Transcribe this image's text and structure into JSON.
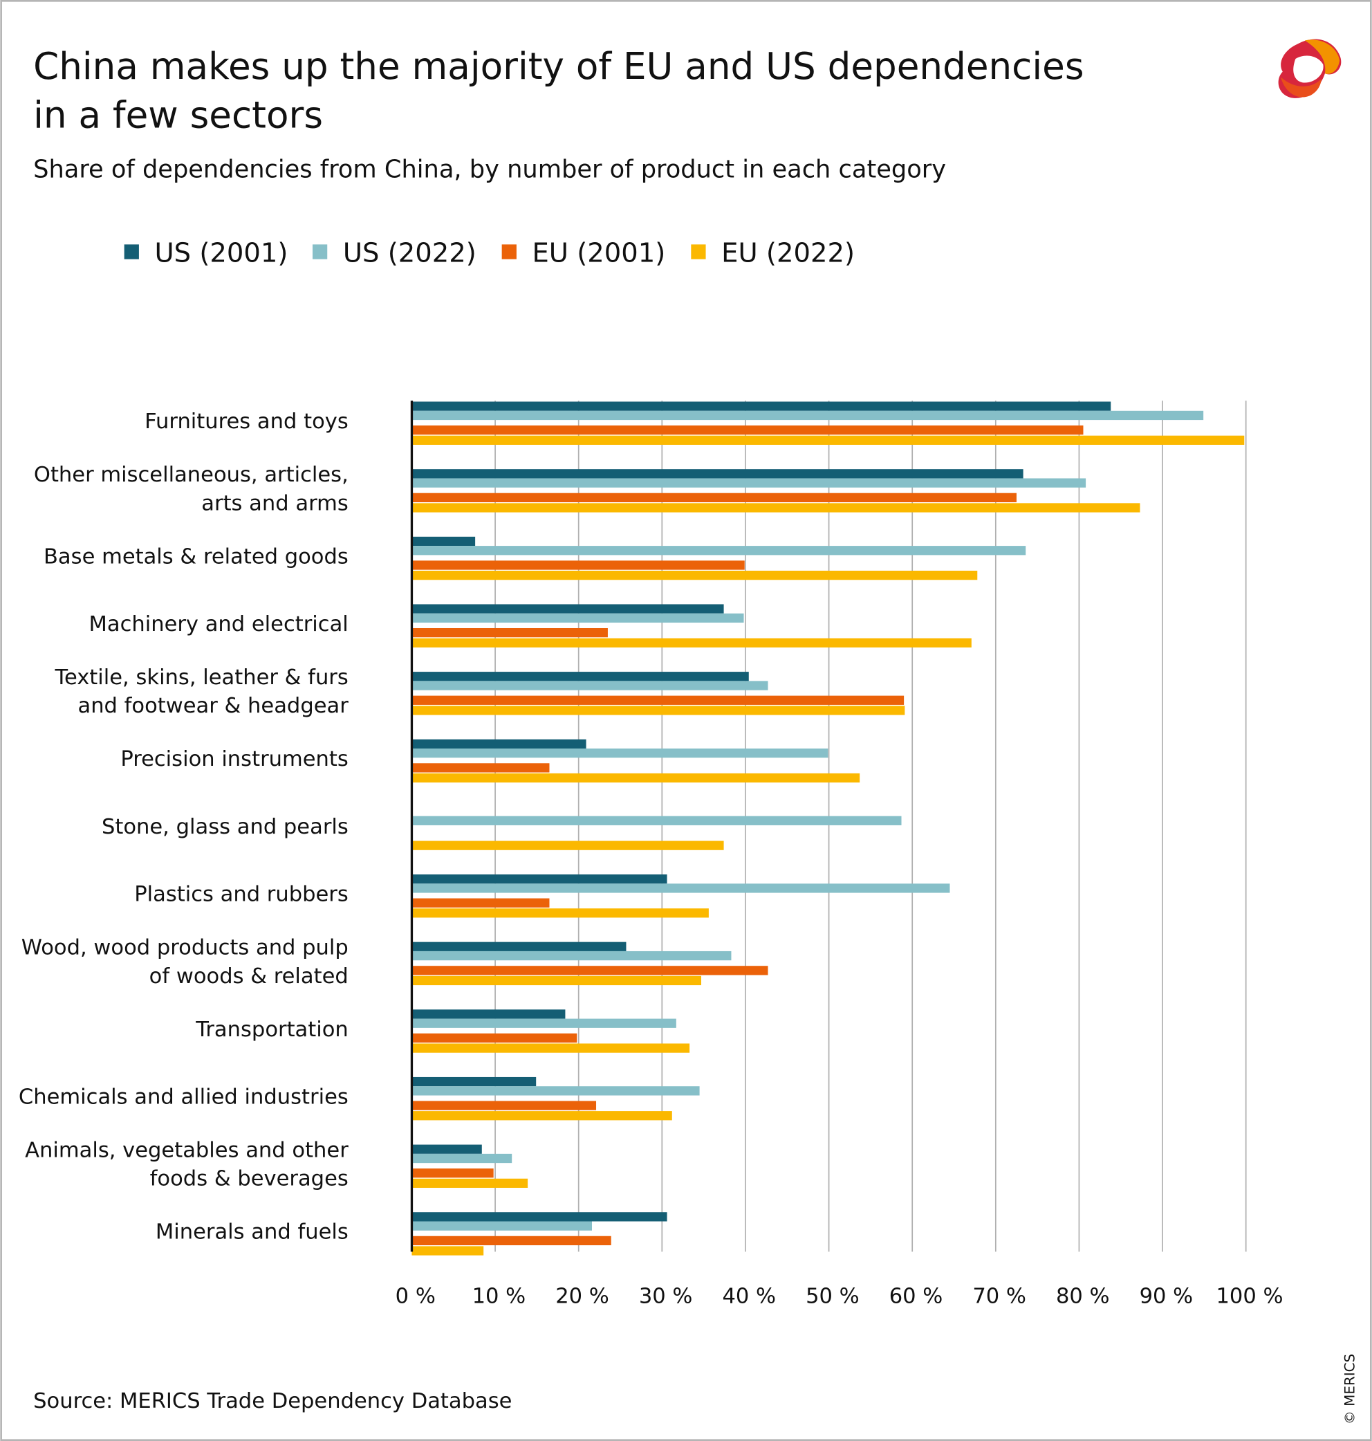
{
  "chart_data": {
    "type": "bar",
    "orientation": "horizontal",
    "title": "China makes up the majority of EU and US dependencies in a few sectors",
    "title_lines": [
      "China makes up the majority of EU and US dependencies",
      "in a few sectors"
    ],
    "subtitle": "Share of dependencies from China, by number of product in each category",
    "categories": [
      [
        "Furnitures and toys"
      ],
      [
        "Other miscellaneous, articles,",
        "arts and arms"
      ],
      [
        "Base metals & related goods"
      ],
      [
        "Machinery and electrical"
      ],
      [
        "Textile, skins, leather & furs",
        "and footwear & headgear"
      ],
      [
        "Precision instruments"
      ],
      [
        "Stone, glass and pearls"
      ],
      [
        "Plastics and rubbers"
      ],
      [
        "Wood, wood products and pulp",
        "of woods & related"
      ],
      [
        "Transportation"
      ],
      [
        "Chemicals and allied industries"
      ],
      [
        "Animals, vegetables and other",
        "foods & beverages"
      ],
      [
        "Minerals and fuels"
      ]
    ],
    "series": [
      {
        "name": "US (2001)",
        "color": "#145e74",
        "values": [
          83.8,
          73.3,
          7.6,
          37.4,
          40.4,
          20.9,
          0,
          30.6,
          25.7,
          18.4,
          14.9,
          8.4,
          30.6
        ]
      },
      {
        "name": "US (2022)",
        "color": "#86bfc8",
        "values": [
          94.9,
          80.8,
          73.6,
          39.8,
          42.7,
          49.9,
          58.7,
          64.5,
          38.3,
          31.7,
          34.5,
          12.0,
          21.6
        ]
      },
      {
        "name": "EU (2001)",
        "color": "#eb6209",
        "values": [
          80.5,
          72.5,
          39.9,
          23.5,
          59.0,
          16.5,
          0,
          16.5,
          42.7,
          19.8,
          22.1,
          9.8,
          23.9
        ]
      },
      {
        "name": "EU (2022)",
        "color": "#fbb800",
        "values": [
          99.8,
          87.3,
          67.8,
          67.1,
          59.1,
          53.7,
          37.4,
          35.6,
          34.7,
          33.3,
          31.2,
          13.9,
          8.6
        ]
      }
    ],
    "xlim": [
      0,
      100
    ],
    "xticks": [
      "0 %",
      "10 %",
      "20 %",
      "30 %",
      "40 %",
      "50 %",
      "60 %",
      "70 %",
      "80 %",
      "90 %",
      "100 %"
    ],
    "grid": "vertical",
    "legend": "top"
  },
  "source": "Source: MERICS Trade Dependency Database",
  "copyright": "© MERICS",
  "logo": "MERICS"
}
